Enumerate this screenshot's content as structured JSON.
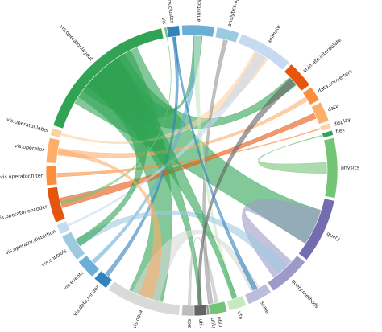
{
  "diagram": {
    "type": "chord",
    "groups": [
      {
        "label": "vis.operator.layout",
        "color": "#31a354"
      },
      {
        "label": "vis.operator.label",
        "color": "#fdd0a2"
      },
      {
        "label": "vis.operator",
        "color": "#fdae6b"
      },
      {
        "label": "vis.operator.filter",
        "color": "#fd8d3c"
      },
      {
        "label": "vis.operator.encoder",
        "color": "#e6550d"
      },
      {
        "label": "vis.operator.distortion",
        "color": "#c6dbef"
      },
      {
        "label": "vis.controls",
        "color": "#9ecae1"
      },
      {
        "label": "vis.events",
        "color": "#6baed6"
      },
      {
        "label": "vis.data.render",
        "color": "#3182bd"
      },
      {
        "label": "vis.data",
        "color": "#d9d9d9"
      },
      {
        "label": "vis.axis",
        "color": "#bdbdbd"
      },
      {
        "label": "util.palette",
        "color": "#969696"
      },
      {
        "label": "util.math",
        "color": "#636363"
      },
      {
        "label": "util.heap",
        "color": "#74c476"
      },
      {
        "label": "util",
        "color": "#c7e9c0"
      },
      {
        "label": "scale",
        "color": "#bcbddc"
      },
      {
        "label": "query.methods",
        "color": "#9e9ac8"
      },
      {
        "label": "query",
        "color": "#756bb1"
      },
      {
        "label": "physics",
        "color": "#74c476"
      },
      {
        "label": "flex",
        "color": "#31a354"
      },
      {
        "label": "display",
        "color": "#fdd0a2"
      },
      {
        "label": "data",
        "color": "#fdae6b"
      },
      {
        "label": "data.converters",
        "color": "#fd8d3c"
      },
      {
        "label": "animate.interpolate",
        "color": "#e6550d"
      },
      {
        "label": "animate",
        "color": "#c6dbef"
      },
      {
        "label": "analytics.optimization",
        "color": "#9ecae1"
      },
      {
        "label": "analytics.graph",
        "color": "#6baed6"
      },
      {
        "label": "analytics.cluster",
        "color": "#3182bd"
      },
      {
        "label": "vis",
        "color": "#74c476"
      }
    ]
  }
}
